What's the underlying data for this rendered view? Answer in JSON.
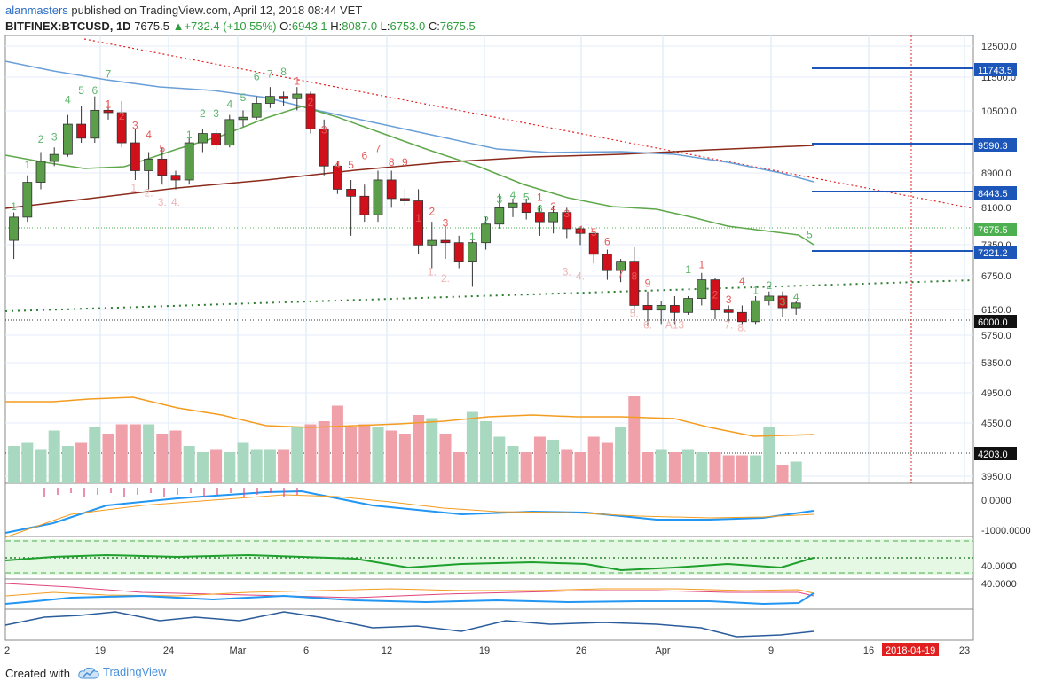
{
  "header": {
    "user": "alanmasters",
    "published": " published on TradingView.com, April 12, 2018 08:44 VET",
    "symbol": "BITFINEX:BTCUSD, 1D",
    "last": "7675.5",
    "change": "+732.4 (+10.55%)",
    "o_label": "O:",
    "o_value": "6943.1",
    "h_label": "H:",
    "h_value": "8087.0",
    "l_label": "L:",
    "l_value": "6753.0",
    "c_label": "C:",
    "c_value": "7675.5"
  },
  "footer": {
    "created_with": "Created with",
    "brand": "TradingView"
  },
  "colors": {
    "up": "#5b9e4a",
    "down": "#d0101a",
    "vol_up": "#a8d8bf",
    "vol_down": "#f0a0a8",
    "level": "#1c56b8",
    "trend": "#e02020",
    "support": "#2e7d32",
    "ma_slow": "#8b2a1a",
    "ma_blue": "#6a9fd8",
    "ma_green": "#5fa84a",
    "vol_ma": "#f39c1f"
  },
  "chart_data": {
    "type": "candlestick",
    "dates": [
      "Feb 12",
      "Feb 13",
      "Feb 14",
      "Feb 15",
      "Feb 16",
      "Feb 17",
      "Feb 18",
      "Feb 19",
      "Feb 20",
      "Feb 21",
      "Feb 22",
      "Feb 23",
      "Feb 24",
      "Feb 25",
      "Feb 26",
      "Feb 27",
      "Feb 28",
      "Mar 1",
      "Mar 2",
      "Mar 3",
      "Mar 4",
      "Mar 5",
      "Mar 6",
      "Mar 7",
      "Mar 8",
      "Mar 9",
      "Mar 10",
      "Mar 11",
      "Mar 12",
      "Mar 13",
      "Mar 14",
      "Mar 15",
      "Mar 16",
      "Mar 17",
      "Mar 18",
      "Mar 19",
      "Mar 20",
      "Mar 21",
      "Mar 22",
      "Mar 23",
      "Mar 24",
      "Mar 25",
      "Mar 26",
      "Mar 27",
      "Mar 28",
      "Mar 29",
      "Mar 30",
      "Mar 31",
      "Apr 1",
      "Apr 2",
      "Apr 3",
      "Apr 4",
      "Apr 5",
      "Apr 6",
      "Apr 7",
      "Apr 8",
      "Apr 9",
      "Apr 10",
      "Apr 11"
    ],
    "ohlc": [
      [
        8300,
        8900,
        7900,
        8800
      ],
      [
        8800,
        9700,
        8700,
        9550
      ],
      [
        9550,
        10200,
        9400,
        10000
      ],
      [
        10000,
        10300,
        9900,
        10150
      ],
      [
        10150,
        11000,
        10100,
        10800
      ],
      [
        10800,
        11200,
        10400,
        10500
      ],
      [
        10500,
        11400,
        10400,
        11100
      ],
      [
        11100,
        11300,
        10900,
        11050
      ],
      [
        11050,
        11300,
        10300,
        10400
      ],
      [
        10400,
        10700,
        9600,
        9800
      ],
      [
        9800,
        10200,
        9400,
        10050
      ],
      [
        10050,
        10300,
        9500,
        9700
      ],
      [
        9700,
        9800,
        9400,
        9600
      ],
      [
        9600,
        10500,
        9500,
        10400
      ],
      [
        10400,
        10700,
        10200,
        10600
      ],
      [
        10600,
        10700,
        10250,
        10350
      ],
      [
        10350,
        11000,
        10300,
        10900
      ],
      [
        10900,
        11100,
        10750,
        10950
      ],
      [
        10950,
        11400,
        10900,
        11250
      ],
      [
        11250,
        11600,
        11150,
        11400
      ],
      [
        11400,
        11500,
        11200,
        11350
      ],
      [
        11350,
        11600,
        11100,
        11450
      ],
      [
        11450,
        11500,
        10600,
        10700
      ],
      [
        10700,
        10900,
        9700,
        9900
      ],
      [
        9900,
        10000,
        9300,
        9400
      ],
      [
        9400,
        9600,
        8400,
        9250
      ],
      [
        9250,
        9500,
        8700,
        8850
      ],
      [
        8850,
        9800,
        8700,
        9600
      ],
      [
        9600,
        9800,
        9000,
        9200
      ],
      [
        9200,
        9400,
        9050,
        9150
      ],
      [
        9150,
        9400,
        8000,
        8200
      ],
      [
        8200,
        8700,
        7700,
        8300
      ],
      [
        8300,
        8600,
        7900,
        8250
      ],
      [
        8250,
        8400,
        7700,
        7850
      ],
      [
        7850,
        8300,
        7300,
        8250
      ],
      [
        8250,
        8800,
        8100,
        8650
      ],
      [
        8650,
        9300,
        8550,
        9000
      ],
      [
        9000,
        9200,
        8800,
        9100
      ],
      [
        9100,
        9200,
        8750,
        8900
      ],
      [
        8900,
        9050,
        8400,
        8700
      ],
      [
        8700,
        9050,
        8450,
        8900
      ],
      [
        8900,
        9000,
        8350,
        8550
      ],
      [
        8550,
        8600,
        8200,
        8450
      ],
      [
        8450,
        8500,
        7800,
        8000
      ],
      [
        8000,
        8100,
        7450,
        7650
      ],
      [
        7650,
        7900,
        7400,
        7850
      ],
      [
        7850,
        8150,
        6700,
        6900
      ],
      [
        6900,
        7200,
        6450,
        6800
      ],
      [
        6800,
        7000,
        6500,
        6900
      ],
      [
        6900,
        7100,
        6500,
        6750
      ],
      [
        6750,
        7100,
        6700,
        7050
      ],
      [
        7050,
        7600,
        6900,
        7450
      ],
      [
        7450,
        7500,
        6600,
        6800
      ],
      [
        6800,
        6900,
        6550,
        6750
      ],
      [
        6750,
        6900,
        6500,
        6550
      ],
      [
        6550,
        7100,
        6500,
        7000
      ],
      [
        7000,
        7200,
        6900,
        7100
      ],
      [
        7100,
        7200,
        6650,
        6850
      ],
      [
        6850,
        7000,
        6700,
        6950
      ]
    ],
    "volume_up_down": "green bars = up days, red bars = down days",
    "y_ticks": [
      "12500.0",
      "11500.0",
      "10500.0",
      "8900.0",
      "8100.0",
      "7350.0",
      "6750.0",
      "6150.0",
      "5750.0",
      "5350.0",
      "4950.0",
      "4550.0",
      "3950.0"
    ],
    "x_ticks": [
      "2",
      "19",
      "24",
      "Mar",
      "6",
      "12",
      "19",
      "26",
      "Apr",
      "9",
      "16",
      "23"
    ],
    "price_labels": [
      {
        "text": "11743.5",
        "role": "level"
      },
      {
        "text": "9590.3",
        "role": "level"
      },
      {
        "text": "8443.5",
        "role": "level"
      },
      {
        "text": "7675.5",
        "role": "last"
      },
      {
        "text": "7221.2",
        "role": "level"
      },
      {
        "text": "6000.0",
        "role": "black"
      },
      {
        "text": "4203.0",
        "role": "black"
      }
    ],
    "date_marker": "2018-04-19",
    "macd_ticks": [
      "0.0000",
      "-1000.0000"
    ],
    "rsi_ticks": [
      "40.0000"
    ],
    "stoch_ticks": [
      "40.0000"
    ]
  },
  "td_counts": {
    "up": [
      {
        "text": "1",
        "d": 0,
        "v": 8950
      },
      {
        "text": "1",
        "d": 1,
        "v": 9850
      },
      {
        "text": "2",
        "d": 2,
        "v": 10400
      },
      {
        "text": "3",
        "d": 3,
        "v": 10450
      },
      {
        "text": "4",
        "d": 4,
        "v": 11250
      },
      {
        "text": "5",
        "d": 5,
        "v": 11450
      },
      {
        "text": "6",
        "d": 6,
        "v": 11450
      },
      {
        "text": "7",
        "d": 7,
        "v": 11800
      },
      {
        "text": "1",
        "d": 13,
        "v": 10500
      },
      {
        "text": "2",
        "d": 14,
        "v": 10950
      },
      {
        "text": "3",
        "d": 15,
        "v": 10950
      },
      {
        "text": "4",
        "d": 16,
        "v": 11150
      },
      {
        "text": "5",
        "d": 17,
        "v": 11300
      },
      {
        "text": "6",
        "d": 18,
        "v": 11750
      },
      {
        "text": "7",
        "d": 19,
        "v": 11800
      },
      {
        "text": "8",
        "d": 20,
        "v": 11850
      },
      {
        "text": "1",
        "d": 34,
        "v": 8300
      },
      {
        "text": "2",
        "d": 35,
        "v": 8650
      },
      {
        "text": "3",
        "d": 36,
        "v": 9100
      },
      {
        "text": "4",
        "d": 37,
        "v": 9200
      },
      {
        "text": "5",
        "d": 38,
        "v": 9150
      },
      {
        "text": "6",
        "d": 39,
        "v": 8900
      },
      {
        "text": "1",
        "d": 50,
        "v": 7600
      },
      {
        "text": "1",
        "d": 55,
        "v": 7150
      },
      {
        "text": "2",
        "d": 56,
        "v": 7250
      },
      {
        "text": "3",
        "d": 57,
        "v": 6900
      },
      {
        "text": "4",
        "d": 58,
        "v": 7000
      },
      {
        "text": "5",
        "d": 59,
        "v": 8350
      }
    ],
    "down": [
      {
        "text": "1",
        "d": 7,
        "v": 11150
      },
      {
        "text": "2",
        "d": 8,
        "v": 10900
      },
      {
        "text": "3",
        "d": 9,
        "v": 10700
      },
      {
        "text": "4",
        "d": 10,
        "v": 10500
      },
      {
        "text": "5",
        "d": 11,
        "v": 10200
      },
      {
        "text": "1",
        "d": 21,
        "v": 11650
      },
      {
        "text": "2",
        "d": 22,
        "v": 11200
      },
      {
        "text": "3",
        "d": 23,
        "v": 10600
      },
      {
        "text": "4",
        "d": 24,
        "v": 9850
      },
      {
        "text": "5",
        "d": 25,
        "v": 9850
      },
      {
        "text": "6",
        "d": 26,
        "v": 10050
      },
      {
        "text": "7",
        "d": 27,
        "v": 10200
      },
      {
        "text": "8",
        "d": 28,
        "v": 9900
      },
      {
        "text": "9",
        "d": 29,
        "v": 9900
      },
      {
        "text": "1",
        "d": 30,
        "v": 8700
      },
      {
        "text": "2",
        "d": 31,
        "v": 8850
      },
      {
        "text": "3",
        "d": 32,
        "v": 8600
      },
      {
        "text": "1",
        "d": 39,
        "v": 9150
      },
      {
        "text": "2",
        "d": 40,
        "v": 8950
      },
      {
        "text": "3",
        "d": 41,
        "v": 8800
      },
      {
        "text": "4",
        "d": 42,
        "v": 8450
      },
      {
        "text": "5",
        "d": 43,
        "v": 8400
      },
      {
        "text": "6",
        "d": 44,
        "v": 8200
      },
      {
        "text": "7",
        "d": 45,
        "v": 7500
      },
      {
        "text": "8",
        "d": 46,
        "v": 7450
      },
      {
        "text": "9",
        "d": 47,
        "v": 7300
      },
      {
        "text": "1",
        "d": 51,
        "v": 7700
      },
      {
        "text": "2",
        "d": 52,
        "v": 7050
      },
      {
        "text": "3",
        "d": 53,
        "v": 6950
      },
      {
        "text": "4",
        "d": 54,
        "v": 7350
      }
    ],
    "low_marks": [
      {
        "text": "1.",
        "d": 9,
        "v": 9350
      },
      {
        "text": "2.",
        "d": 10,
        "v": 9250
      },
      {
        "text": "3.",
        "d": 11,
        "v": 9050
      },
      {
        "text": "4.",
        "d": 12,
        "v": 9050
      },
      {
        "text": "1.",
        "d": 31,
        "v": 7550
      },
      {
        "text": "2.",
        "d": 32,
        "v": 7400
      },
      {
        "text": "3.",
        "d": 41,
        "v": 7550
      },
      {
        "text": "4.",
        "d": 42,
        "v": 7450
      },
      {
        "text": "5.",
        "d": 46,
        "v": 6650
      },
      {
        "text": "6.",
        "d": 47,
        "v": 6400
      },
      {
        "text": "A13",
        "d": 49,
        "v": 6400
      },
      {
        "text": "7.",
        "d": 53,
        "v": 6400
      },
      {
        "text": "8.",
        "d": 54,
        "v": 6350
      }
    ]
  }
}
